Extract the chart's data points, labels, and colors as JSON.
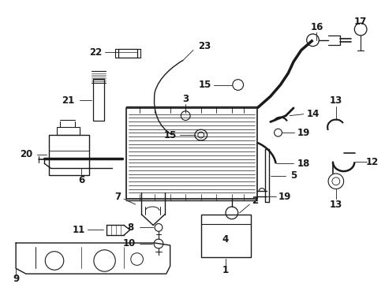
{
  "bg_color": "#ffffff",
  "fig_width": 4.89,
  "fig_height": 3.6,
  "dpi": 100,
  "line_color": "#1a1a1a",
  "label_fontsize": 8.5,
  "label_fontweight": "bold",
  "label_font": "DejaVu Sans"
}
